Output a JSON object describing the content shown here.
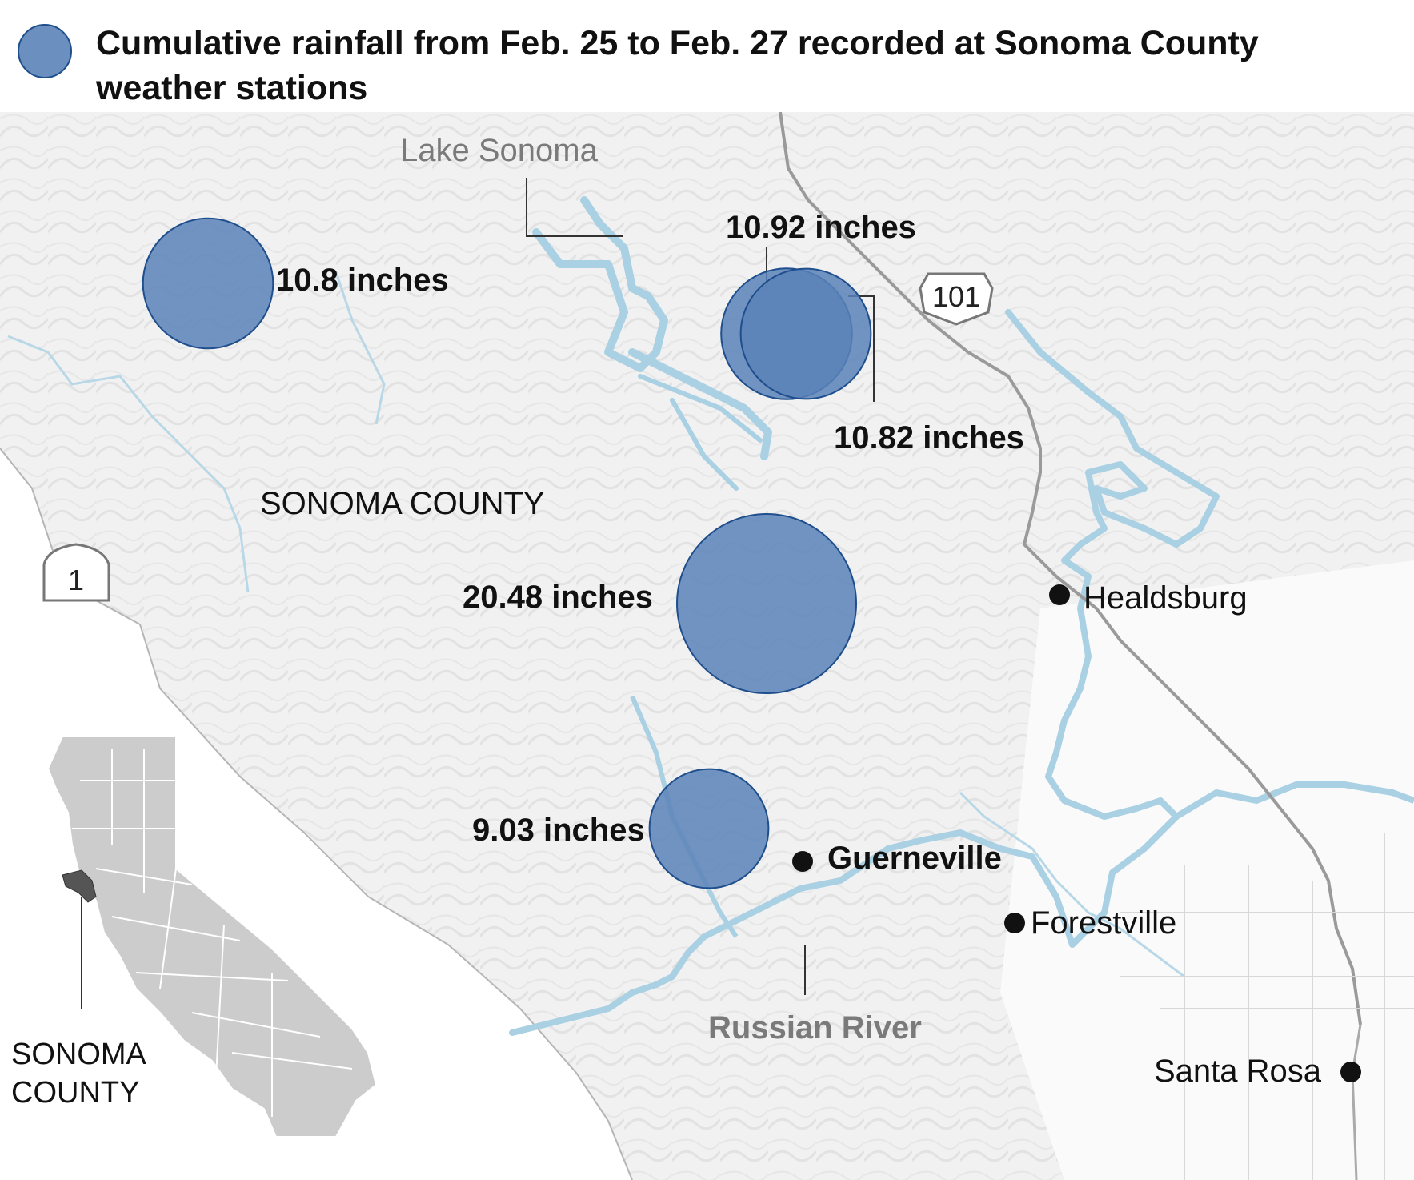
{
  "legend": {
    "text_line1": "Cumulative rainfall from Feb. 25 to Feb. 27 recorded at Sonoma County",
    "text_line2": "weather stations",
    "color": "#6b8fbf"
  },
  "stations": [
    {
      "label": "10.8 inches",
      "value_inches": 10.8
    },
    {
      "label": "10.92 inches",
      "value_inches": 10.92
    },
    {
      "label": "10.82 inches",
      "value_inches": 10.82
    },
    {
      "label": "20.48 inches",
      "value_inches": 20.48
    },
    {
      "label": "9.03 inches",
      "value_inches": 9.03
    }
  ],
  "places": {
    "lake": "Lake Sonoma",
    "county": "SONOMA COUNTY",
    "river": "Russian River",
    "healdsburg": "Healdsburg",
    "guerneville": "Guerneville",
    "forestville": "Forestville",
    "santa_rosa": "Santa Rosa"
  },
  "highways": {
    "us101": "101",
    "ca1": "1"
  },
  "inset": {
    "label_line1": "SONOMA",
    "label_line2": "COUNTY"
  },
  "colors": {
    "circle_fill": "#5b82b8",
    "circle_stroke": "#1e4e8c",
    "water": "#a9d0e3",
    "road": "#9a9a9a",
    "inset_state": "#cccccc",
    "inset_county": "#555555"
  }
}
